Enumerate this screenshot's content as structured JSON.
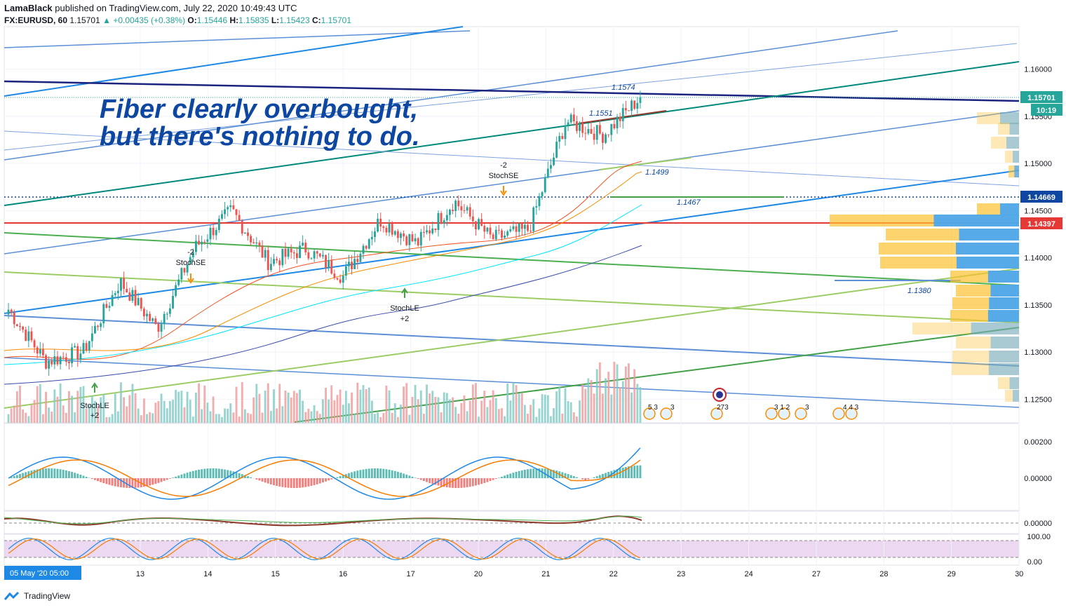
{
  "header": {
    "publisher": "LamaBlack",
    "published_text": "published on TradingView.com, July 22, 2020 10:49:43 UTC",
    "symbol": "FX:EURUSD, 60",
    "last": "1.15701",
    "change": "▲ +0.00435 (+0.38%)",
    "o_label": "O:",
    "o": "1.15446",
    "h_label": "H:",
    "h": "1.15835",
    "l_label": "L:",
    "l": "1.15423",
    "c_label": "C:",
    "c": "1.15701"
  },
  "annotation": {
    "line1": "Fiber clearly overbought,",
    "line2": "but there's nothing to do."
  },
  "price_axis": {
    "ticks": [
      "1.16000",
      "1.15500",
      "1.15000",
      "1.14500",
      "1.14000",
      "1.13500",
      "1.13000",
      "1.12500"
    ],
    "tags": [
      {
        "label": "1.15701",
        "sub": "10:19",
        "color": "#26a69a"
      },
      {
        "label": "1.14669",
        "color": "#0d47a1"
      },
      {
        "label": "1.14397",
        "color": "#e53935"
      }
    ]
  },
  "level_labels": [
    "1.1574",
    "1.1551",
    "1.1499",
    "1.1467",
    "1.1380"
  ],
  "signals": [
    {
      "top": "-2",
      "bottom": "StochSE"
    },
    {
      "top": "-2",
      "bottom": "StochSE"
    },
    {
      "top": "StochLE",
      "bottom": "+2"
    },
    {
      "top": "StochLE",
      "bottom": "+2"
    }
  ],
  "event_labels": [
    "5 3",
    "3",
    "273",
    "3 1 2",
    "3",
    "4 4 3"
  ],
  "macd_axis": {
    "ticks": [
      "0.00200",
      "0.00000"
    ]
  },
  "osc_axis": {
    "ticks": [
      "0.00000"
    ]
  },
  "stoch_axis": {
    "ticks": [
      "100.00",
      "0.00"
    ]
  },
  "time_axis": {
    "cursor_label": "05 May '20   05:00",
    "labels": [
      "13",
      "14",
      "15",
      "16",
      "17",
      "20",
      "21",
      "22",
      "23",
      "24",
      "27",
      "28",
      "29",
      "30"
    ]
  },
  "footer": {
    "brand": "TradingView"
  },
  "colors": {
    "up": "#26a69a",
    "down": "#ef5350",
    "blue": "#1e88e5",
    "navy": "#1a237e",
    "red": "#e53935",
    "green": "#43a047",
    "teal": "#00897b"
  },
  "chart_data": {
    "type": "candlestick",
    "symbol": "FX:EURUSD",
    "interval": "60",
    "ylim": [
      1.1225,
      1.1645
    ],
    "ohlc_last": {
      "open": 1.15446,
      "high": 1.15835,
      "low": 1.15423,
      "close": 1.15701
    },
    "horizontal_levels": [
      {
        "value": 1.14669,
        "style": "dotted",
        "color": "#0d47a1"
      },
      {
        "value": 1.14397,
        "style": "solid",
        "color": "#e53935"
      },
      {
        "value": 1.1467,
        "label": "1.1467"
      },
      {
        "value": 1.138,
        "label": "1.1380"
      }
    ],
    "close_path": [
      {
        "x": "12 May",
        "y": 1.1345
      },
      {
        "x": "12 May",
        "y": 1.129
      },
      {
        "x": "13 May",
        "y": 1.13
      },
      {
        "x": "13 May",
        "y": 1.1375
      },
      {
        "x": "14 May",
        "y": 1.1325
      },
      {
        "x": "14 May",
        "y": 1.141
      },
      {
        "x": "15 May",
        "y": 1.145
      },
      {
        "x": "15 May",
        "y": 1.1395
      },
      {
        "x": "16 May",
        "y": 1.141
      },
      {
        "x": "17 May",
        "y": 1.138
      },
      {
        "x": "18 May",
        "y": 1.144
      },
      {
        "x": "19 May",
        "y": 1.1415
      },
      {
        "x": "20 May",
        "y": 1.146
      },
      {
        "x": "20 May",
        "y": 1.142
      },
      {
        "x": "21 May",
        "y": 1.143
      },
      {
        "x": "21 May",
        "y": 1.1545
      },
      {
        "x": "22 May",
        "y": 1.153
      },
      {
        "x": "22 May",
        "y": 1.157
      }
    ],
    "volume_profile_visible": true
  }
}
